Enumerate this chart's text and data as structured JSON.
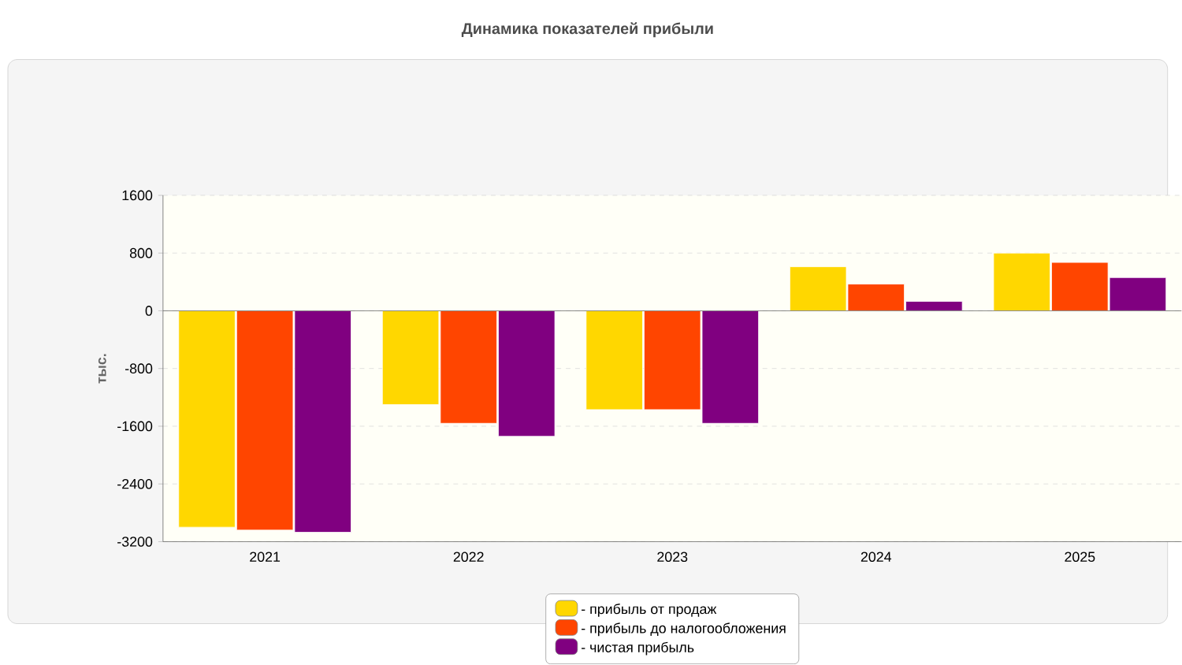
{
  "chart_data": {
    "type": "bar",
    "title": "Динамика показателей прибыли",
    "ylabel": "тыс.",
    "categories": [
      "2021",
      "2022",
      "2023",
      "2024",
      "2025"
    ],
    "series": [
      {
        "name": "- прибыль от продаж",
        "color": "#ffd700",
        "values": [
          -3000,
          -1300,
          -1370,
          610,
          800
        ]
      },
      {
        "name": "- прибыль до налогообложения",
        "color": "#ff4500",
        "values": [
          -3040,
          -1560,
          -1370,
          370,
          670
        ]
      },
      {
        "name": "- чистая прибыль",
        "color": "#800080",
        "values": [
          -3070,
          -1740,
          -1560,
          130,
          460
        ]
      }
    ],
    "ylim": [
      -3200,
      1600
    ],
    "yticks": [
      -3200,
      -2400,
      -1600,
      -800,
      0,
      800,
      1600
    ],
    "grid": "y",
    "legend": "bottom"
  }
}
